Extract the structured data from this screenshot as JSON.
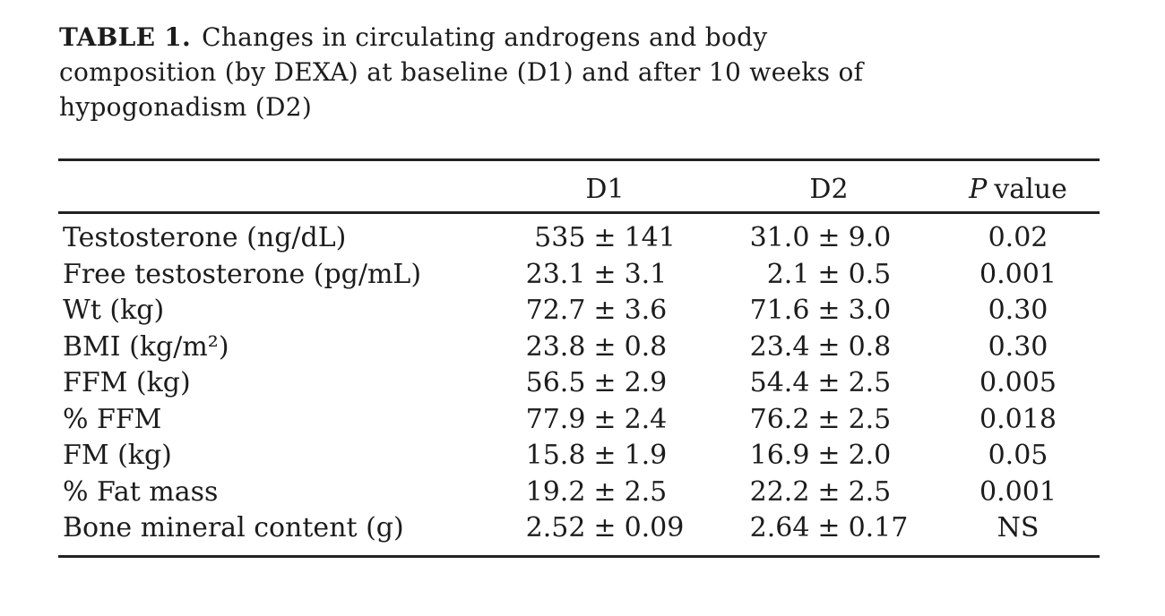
{
  "title": {
    "label": "TABLE 1.",
    "line1": "Changes in circulating androgens and body",
    "line2": "composition (by DEXA) at baseline (D1) and after 10 weeks of",
    "line3": "hypogonadism (D2)"
  },
  "table": {
    "plus_minus": "±",
    "columns": {
      "variable": "",
      "d1": "D1",
      "d2": "D2",
      "p_italic": "P",
      "p_rest": "value"
    },
    "rows": [
      {
        "label": "Testosterone (ng/dL)",
        "d1_mean": "535",
        "d1_sd": "141",
        "d2_mean": "31.0",
        "d2_sd": "9.0",
        "p": "0.02"
      },
      {
        "label": "Free testosterone (pg/mL)",
        "d1_mean": "23.1",
        "d1_sd": "3.1",
        "d2_mean": "2.1",
        "d2_sd": "0.5",
        "p": "0.001"
      },
      {
        "label": "Wt (kg)",
        "d1_mean": "72.7",
        "d1_sd": "3.6",
        "d2_mean": "71.6",
        "d2_sd": "3.0",
        "p": "0.30"
      },
      {
        "label": "BMI (kg/m²)",
        "d1_mean": "23.8",
        "d1_sd": "0.8",
        "d2_mean": "23.4",
        "d2_sd": "0.8",
        "p": "0.30"
      },
      {
        "label": "FFM (kg)",
        "d1_mean": "56.5",
        "d1_sd": "2.9",
        "d2_mean": "54.4",
        "d2_sd": "2.5",
        "p": "0.005"
      },
      {
        "label": "% FFM",
        "d1_mean": "77.9",
        "d1_sd": "2.4",
        "d2_mean": "76.2",
        "d2_sd": "2.5",
        "p": "0.018"
      },
      {
        "label": "FM (kg)",
        "d1_mean": "15.8",
        "d1_sd": "1.9",
        "d2_mean": "16.9",
        "d2_sd": "2.0",
        "p": "0.05"
      },
      {
        "label": "% Fat mass",
        "d1_mean": "19.2",
        "d1_sd": "2.5",
        "d2_mean": "22.2",
        "d2_sd": "2.5",
        "p": "0.001"
      },
      {
        "label": "Bone mineral content (g)",
        "d1_mean": "2.52",
        "d1_sd": "0.09",
        "d2_mean": "2.64",
        "d2_sd": "0.17",
        "p": "NS"
      }
    ]
  },
  "chart_data": {
    "type": "table",
    "title": "TABLE 1. Changes in circulating androgens and body composition (by DEXA) at baseline (D1) and after 10 weeks of hypogonadism (D2)",
    "columns": [
      "",
      "D1",
      "D2",
      "P value"
    ],
    "rows": [
      [
        "Testosterone (ng/dL)",
        "535 ± 141",
        "31.0 ± 9.0",
        "0.02"
      ],
      [
        "Free testosterone (pg/mL)",
        "23.1 ± 3.1",
        "2.1 ± 0.5",
        "0.001"
      ],
      [
        "Wt (kg)",
        "72.7 ± 3.6",
        "71.6 ± 3.0",
        "0.30"
      ],
      [
        "BMI (kg/m²)",
        "23.8 ± 0.8",
        "23.4 ± 0.8",
        "0.30"
      ],
      [
        "FFM (kg)",
        "56.5 ± 2.9",
        "54.4 ± 2.5",
        "0.005"
      ],
      [
        "% FFM",
        "77.9 ± 2.4",
        "76.2 ± 2.5",
        "0.018"
      ],
      [
        "FM (kg)",
        "15.8 ± 1.9",
        "16.9 ± 2.0",
        "0.05"
      ],
      [
        "% Fat mass",
        "19.2 ± 2.5",
        "22.2 ± 2.5",
        "0.001"
      ],
      [
        "Bone mineral content (g)",
        "2.52 ± 0.09",
        "2.64 ± 0.17",
        "NS"
      ]
    ],
    "text_color": "#1c1c1c",
    "background": "#ffffff"
  }
}
